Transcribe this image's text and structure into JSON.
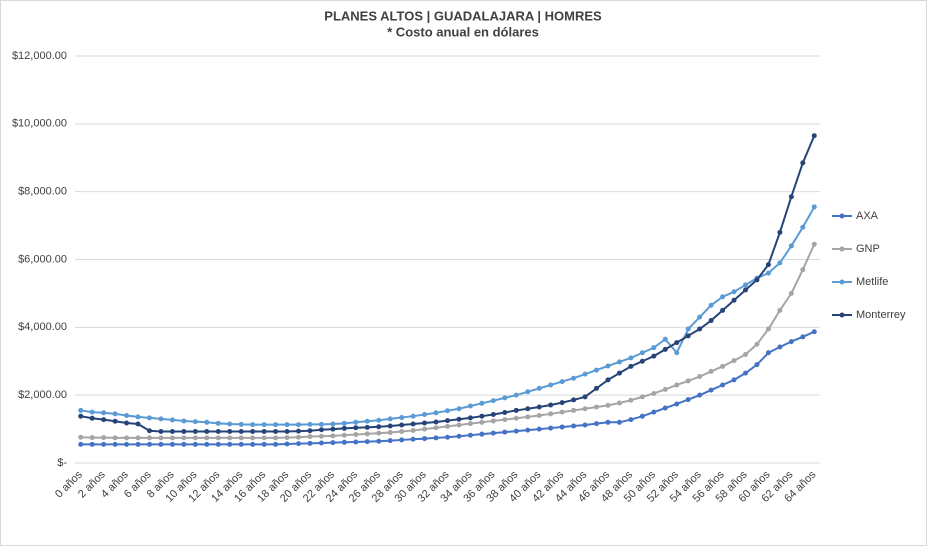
{
  "chart_data": {
    "type": "line",
    "title": "PLANES ALTOS | GUADALAJARA | HOMRES",
    "subtitle": "* Costo anual en dólares",
    "categories": [
      "0 años",
      null,
      "2 años",
      null,
      "4 años",
      null,
      "6 años",
      null,
      "8 años",
      null,
      "10 años",
      null,
      "12 años",
      null,
      "14 años",
      null,
      "16 años",
      null,
      "18 años",
      null,
      "20 años",
      null,
      "22 años",
      null,
      "24 años",
      null,
      "26 años",
      null,
      "28 años",
      null,
      "30 años",
      null,
      "32 años",
      null,
      "34 años",
      null,
      "36 años",
      null,
      "38 años",
      null,
      "40 años",
      null,
      "42 años",
      null,
      "44 años",
      null,
      "46 años",
      null,
      "48 años",
      null,
      "50 años",
      null,
      "52 años",
      null,
      "54 años",
      null,
      "56 años",
      null,
      "58 años",
      null,
      "60 años",
      null,
      "62 años",
      null,
      "64 años"
    ],
    "series": [
      {
        "name": "AXA",
        "color": "#4472c4",
        "values": [
          550,
          550,
          550,
          550,
          550,
          550,
          550,
          550,
          550,
          550,
          550,
          550,
          550,
          550,
          550,
          550,
          550,
          550,
          560,
          570,
          580,
          590,
          600,
          610,
          620,
          630,
          640,
          660,
          680,
          700,
          720,
          740,
          760,
          790,
          820,
          850,
          880,
          910,
          940,
          970,
          1000,
          1030,
          1060,
          1090,
          1120,
          1160,
          1200,
          1200,
          1280,
          1380,
          1500,
          1620,
          1740,
          1870,
          2000,
          2150,
          2300,
          2450,
          2650,
          2900,
          3250,
          3420,
          3580,
          3720,
          3870
        ]
      },
      {
        "name": "GNP",
        "color": "#a5a5a5",
        "values": [
          760,
          750,
          750,
          740,
          740,
          740,
          740,
          740,
          740,
          740,
          740,
          740,
          740,
          740,
          740,
          740,
          740,
          740,
          750,
          760,
          780,
          790,
          800,
          820,
          840,
          860,
          880,
          900,
          930,
          960,
          1000,
          1040,
          1080,
          1120,
          1160,
          1200,
          1240,
          1280,
          1320,
          1360,
          1400,
          1450,
          1500,
          1550,
          1600,
          1650,
          1700,
          1770,
          1850,
          1950,
          2050,
          2170,
          2300,
          2420,
          2550,
          2700,
          2850,
          3020,
          3200,
          3500,
          3950,
          4500,
          5000,
          5700,
          6450
        ]
      },
      {
        "name": "Metlife",
        "color": "#5b9bd5",
        "values": [
          1550,
          1500,
          1480,
          1450,
          1400,
          1360,
          1330,
          1300,
          1270,
          1240,
          1220,
          1200,
          1170,
          1150,
          1140,
          1130,
          1130,
          1130,
          1130,
          1130,
          1140,
          1140,
          1150,
          1170,
          1200,
          1230,
          1260,
          1300,
          1340,
          1380,
          1430,
          1480,
          1540,
          1600,
          1680,
          1760,
          1840,
          1920,
          2000,
          2100,
          2200,
          2300,
          2400,
          2500,
          2620,
          2740,
          2860,
          2980,
          3100,
          3250,
          3400,
          3650,
          3250,
          3950,
          4300,
          4650,
          4900,
          5050,
          5250,
          5450,
          5600,
          5900,
          6400,
          6950,
          7550
        ]
      },
      {
        "name": "Monterrey",
        "color": "#264478",
        "values": [
          1380,
          1320,
          1280,
          1230,
          1180,
          1150,
          950,
          930,
          930,
          930,
          930,
          930,
          930,
          930,
          930,
          930,
          930,
          930,
          930,
          940,
          950,
          980,
          1000,
          1020,
          1040,
          1050,
          1070,
          1090,
          1120,
          1150,
          1180,
          1210,
          1250,
          1290,
          1330,
          1380,
          1430,
          1490,
          1550,
          1600,
          1650,
          1710,
          1780,
          1860,
          1950,
          2200,
          2450,
          2650,
          2850,
          3000,
          3150,
          3350,
          3550,
          3750,
          3950,
          4200,
          4500,
          4800,
          5100,
          5400,
          5850,
          6800,
          7850,
          8850,
          9650
        ]
      }
    ],
    "ylim": [
      0,
      12000
    ],
    "yticks": [
      {
        "value": 0,
        "label": "$-"
      },
      {
        "value": 2000,
        "label": "$2,000.00"
      },
      {
        "value": 4000,
        "label": "$4,000.00"
      },
      {
        "value": 6000,
        "label": "$6,000.00"
      },
      {
        "value": 8000,
        "label": "$8,000.00"
      },
      {
        "value": 10000,
        "label": "$10,000.00"
      },
      {
        "value": 12000,
        "label": "$12,000.00"
      }
    ],
    "grid": true
  }
}
